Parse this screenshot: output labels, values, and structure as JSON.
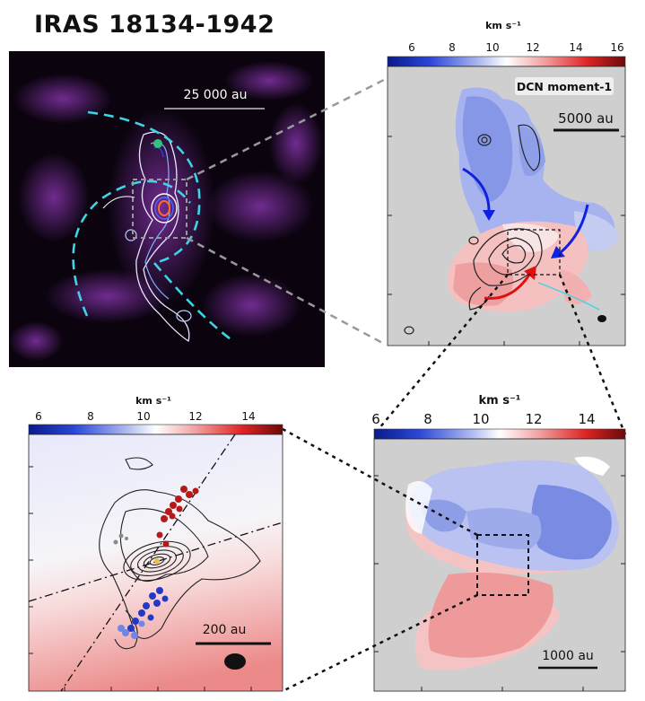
{
  "title": "IRAS 18134-1942",
  "panels": {
    "overview": {
      "scalebar": "25 000 au"
    },
    "moment1": {
      "cbar_label": "km s⁻¹",
      "ticks": [
        "6",
        "8",
        "10",
        "12",
        "14",
        "16"
      ],
      "label": "DCN moment-1",
      "scalebar": "5000 au"
    },
    "zoom_large": {
      "cbar_label": "km s⁻¹",
      "ticks": [
        "6",
        "8",
        "10",
        "12",
        "14"
      ],
      "scalebar": "1000 au"
    },
    "zoom_small": {
      "cbar_label": "km s⁻¹",
      "ticks": [
        "6",
        "8",
        "10",
        "12",
        "14"
      ],
      "scalebar": "200 au"
    }
  },
  "colors": {
    "background": "#ffffff",
    "map_gray": "#cfcfcf",
    "dark_panel": "#0b040f",
    "emission": "#7a2a9a",
    "arc": "#3fd3e6",
    "blue_arrow": "#1020e0",
    "red_arrow": "#e01010",
    "connector": "#9a9a9a"
  }
}
